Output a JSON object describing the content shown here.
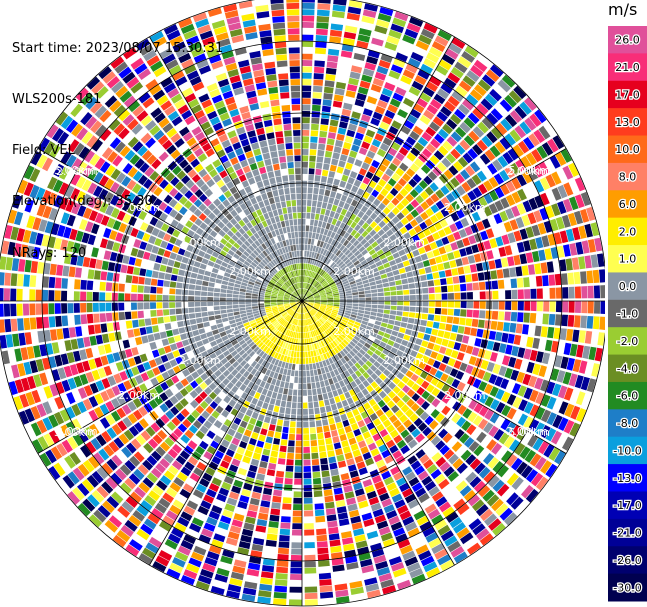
{
  "info": {
    "start_time": "Start time: 2023/08/07 15:30:31",
    "instrument": "WLS200s-181",
    "field": "Field: VEL",
    "elevation": "Elevation(deg): 35.30",
    "nrays": "NRays: 120"
  },
  "colorbar": {
    "unit": "m/s",
    "bands": [
      {
        "label": "26.0",
        "color": "#e0509a"
      },
      {
        "label": "21.0",
        "color": "#f82e78"
      },
      {
        "label": "17.0",
        "color": "#e6001e"
      },
      {
        "label": "13.0",
        "color": "#ff3c1e"
      },
      {
        "label": "10.0",
        "color": "#ff6a1a"
      },
      {
        "label": "8.0",
        "color": "#ff8066"
      },
      {
        "label": "6.0",
        "color": "#ff9d00"
      },
      {
        "label": "2.0",
        "color": "#ffee00"
      },
      {
        "label": "1.0",
        "color": "#ffff50"
      },
      {
        "label": "0.0",
        "color": "#8a96a4"
      },
      {
        "label": "-1.0",
        "color": "#696969"
      },
      {
        "label": "-2.0",
        "color": "#9acd32"
      },
      {
        "label": "-4.0",
        "color": "#6b8e23"
      },
      {
        "label": "-6.0",
        "color": "#228b22"
      },
      {
        "label": "-8.0",
        "color": "#1e7ec8"
      },
      {
        "label": "-10.0",
        "color": "#0a9fde"
      },
      {
        "label": "-13.0",
        "color": "#0000ff"
      },
      {
        "label": "-17.0",
        "color": "#0000b4"
      },
      {
        "label": "-21.0",
        "color": "#000096"
      },
      {
        "label": "-26.0",
        "color": "#00006e"
      },
      {
        "label": "-30.0",
        "color": "#000050"
      }
    ]
  },
  "chart_data": {
    "type": "heatmap",
    "projection": "polar-ppi",
    "field": "VEL",
    "unit": "m/s",
    "n_rays": 120,
    "range_rings": [
      {
        "label": "2.00km"
      },
      {
        "label": "2.00km"
      },
      {
        "label": "2.00km"
      },
      {
        "label": "2.00km"
      },
      {
        "label": "5.00km"
      }
    ],
    "zones": [
      {
        "name": "center",
        "range_fraction": [
          0.0,
          0.13
        ],
        "dominant_values": [
          -1.0,
          -2.0
        ]
      },
      {
        "name": "inner-south",
        "range_fraction": [
          0.0,
          0.2
        ],
        "sector": "south",
        "dominant_values": [
          1.0,
          2.0
        ]
      },
      {
        "name": "near",
        "range_fraction": [
          0.13,
          0.42
        ],
        "dominant_values": [
          0.0
        ]
      },
      {
        "name": "mid-east",
        "range_fraction": [
          0.35,
          0.5
        ],
        "sector": "east",
        "dominant_values": [
          2.0,
          6.0
        ]
      },
      {
        "name": "far",
        "range_fraction": [
          0.55,
          1.0
        ],
        "dominant_values": "noise"
      }
    ]
  }
}
